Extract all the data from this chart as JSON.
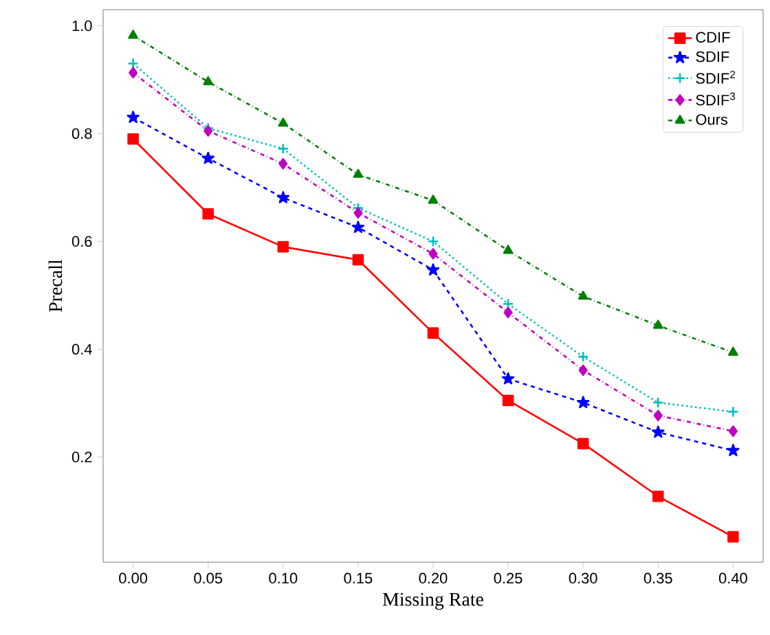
{
  "chart_data": {
    "type": "line",
    "xlabel": "Missing Rate",
    "ylabel": "Precall",
    "x": [
      0.0,
      0.05,
      0.1,
      0.15,
      0.2,
      0.25,
      0.3,
      0.35,
      0.4
    ],
    "series": [
      {
        "name": "CDIF",
        "color": "#ff0000",
        "marker": "square",
        "line_style": "solid",
        "values": [
          0.79,
          0.651,
          0.59,
          0.566,
          0.43,
          0.305,
          0.225,
          0.127,
          0.052
        ]
      },
      {
        "name": "SDIF",
        "color": "#0000ff",
        "marker": "star",
        "line_style": "dashed",
        "values": [
          0.83,
          0.754,
          0.681,
          0.626,
          0.547,
          0.345,
          0.301,
          0.246,
          0.212
        ]
      },
      {
        "name": "SDIF$^{2}$",
        "color": "#00bfbf",
        "marker": "cross",
        "line_style": "dotted",
        "values": [
          0.93,
          0.81,
          0.772,
          0.662,
          0.6,
          0.484,
          0.386,
          0.301,
          0.284
        ]
      },
      {
        "name": "SDIF$^{3}$",
        "color": "#bf00bf",
        "marker": "diamond",
        "line_style": "dashdot",
        "values": [
          0.913,
          0.805,
          0.744,
          0.653,
          0.577,
          0.468,
          0.361,
          0.277,
          0.248
        ]
      },
      {
        "name": "Ours",
        "color": "#008000",
        "marker": "triangle",
        "line_style": "dashdot",
        "values": [
          0.982,
          0.896,
          0.819,
          0.724,
          0.676,
          0.583,
          0.498,
          0.444,
          0.394
        ]
      }
    ],
    "xlim": [
      -0.02,
      0.42
    ],
    "ylim": [
      0.005,
      1.03
    ],
    "xticks": [
      {
        "value": 0.0,
        "label": "0.00"
      },
      {
        "value": 0.05,
        "label": "0.05"
      },
      {
        "value": 0.1,
        "label": "0.10"
      },
      {
        "value": 0.15,
        "label": "0.15"
      },
      {
        "value": 0.2,
        "label": "0.20"
      },
      {
        "value": 0.25,
        "label": "0.25"
      },
      {
        "value": 0.3,
        "label": "0.30"
      },
      {
        "value": 0.35,
        "label": "0.35"
      },
      {
        "value": 0.4,
        "label": "0.40"
      }
    ],
    "yticks": [
      {
        "value": 0.2,
        "label": "0.2"
      },
      {
        "value": 0.4,
        "label": "0.4"
      },
      {
        "value": 0.6,
        "label": "0.6"
      },
      {
        "value": 0.8,
        "label": "0.8"
      },
      {
        "value": 1.0,
        "label": "1.0"
      }
    ],
    "legend": "top right",
    "grid": false
  }
}
